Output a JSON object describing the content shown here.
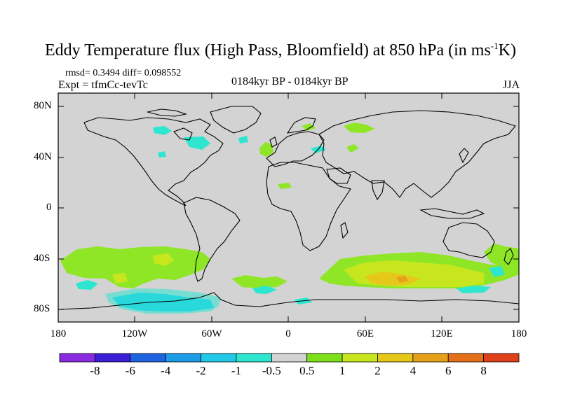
{
  "title": {
    "main": "Eddy Temperature flux (High Pass, Bloomfield) at 850 hPa (in ms",
    "sup": "-1",
    "end": "K)"
  },
  "stats_line": "rmsd= 0.3494 diff= 0.098552",
  "experiment": "Expt = tfmCc-tevTc",
  "center_label": "0184kyr BP - 0184kyr BP",
  "season": "JJA",
  "lat_labels": [
    "80N",
    "40N",
    "0",
    "40S",
    "80S"
  ],
  "lon_labels": [
    "180",
    "120W",
    "60W",
    "0",
    "60E",
    "120E",
    "180"
  ],
  "colorbar": {
    "labels": [
      "-8",
      "-6",
      "-4",
      "-2",
      "-1",
      "-0.5",
      "0.5",
      "1",
      "2",
      "4",
      "6",
      "8"
    ],
    "colors": [
      "#8a2be2",
      "#3a1fd6",
      "#1e63e0",
      "#1e9be6",
      "#22c8e8",
      "#2ee6d0",
      "#d3d3d3",
      "#7ee01a",
      "#c8e61e",
      "#e6c81a",
      "#e6a01a",
      "#e6701a",
      "#e0401a"
    ]
  },
  "field_colors": {
    "background": "#d3d3d3",
    "positive_1": "#8ee626",
    "positive_2": "#c8e61e",
    "positive_4": "#e6c81a",
    "positive_6": "#e6a01a",
    "negative_1": "#2ee6d0",
    "negative_2": "#22c8e8"
  }
}
